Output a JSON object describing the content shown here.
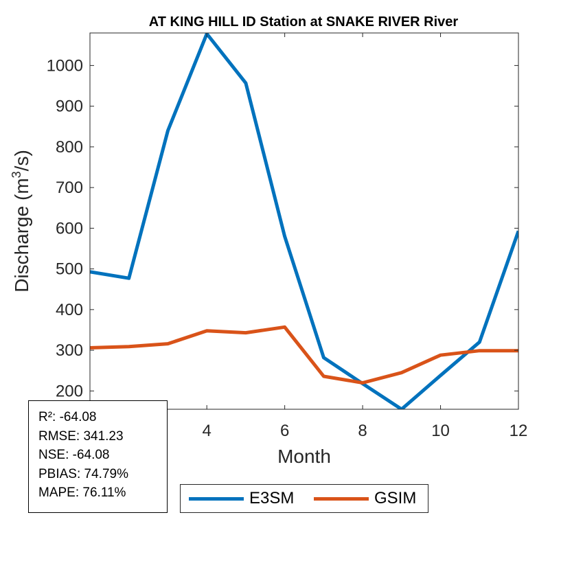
{
  "chart_data": {
    "type": "line",
    "title": "AT KING HILL ID  Station at  SNAKE RIVER  River",
    "xlabel": "Month",
    "ylabel": "Discharge (m",
    "ylabel_sup": "3",
    "ylabel_end": "/s)",
    "xlim": [
      1,
      12
    ],
    "ylim": [
      155,
      1080
    ],
    "xticks": [
      4,
      6,
      8,
      10,
      12
    ],
    "yticks": [
      200,
      300,
      400,
      500,
      600,
      700,
      800,
      900,
      1000
    ],
    "x": [
      1,
      2,
      3,
      4,
      5,
      6,
      7,
      8,
      9,
      10,
      11,
      12
    ],
    "series": [
      {
        "name": "E3SM",
        "color": "#0072BD",
        "values": [
          493,
          477,
          840,
          1078,
          957,
          580,
          282,
          218,
          155,
          238,
          320,
          593
        ]
      },
      {
        "name": "GSIM",
        "color": "#D95319",
        "values": [
          306,
          309,
          316,
          348,
          343,
          357,
          236,
          220,
          245,
          288,
          299,
          299
        ]
      }
    ],
    "grid": false,
    "legend": "bottom-center"
  },
  "stats": [
    "R²: -64.08",
    "RMSE: 341.23",
    "NSE: -64.08",
    "PBIAS: 74.79%",
    "MAPE: 76.11%"
  ]
}
